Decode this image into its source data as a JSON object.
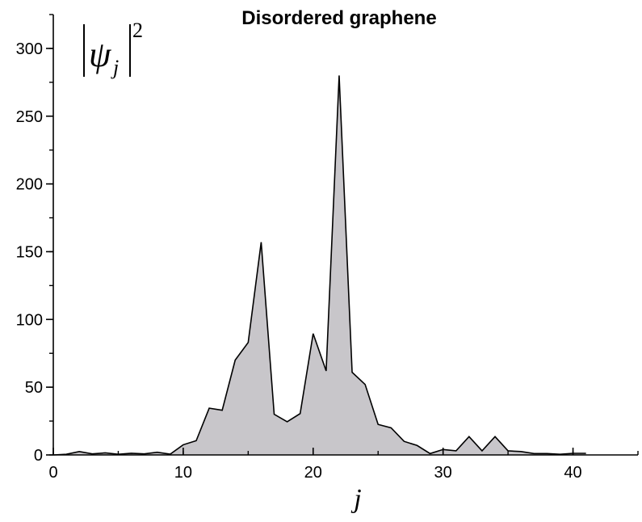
{
  "chart_data": {
    "type": "area",
    "title": "Disordered graphene",
    "xlabel": "j",
    "ylabel": {
      "symbol": "ψ",
      "subscript": "j",
      "exponent": "2"
    },
    "xlim": [
      0,
      45
    ],
    "ylim": [
      0,
      325
    ],
    "x_ticks": [
      "0",
      "10",
      "20",
      "30",
      "40"
    ],
    "y_ticks": [
      "0",
      "50",
      "100",
      "150",
      "200",
      "250",
      "300"
    ],
    "x_tick_values": [
      0,
      10,
      20,
      30,
      40
    ],
    "y_tick_values": [
      0,
      50,
      100,
      150,
      200,
      250,
      300
    ],
    "x_minor_step": 5,
    "y_minor_step": 25,
    "fill_color": "#c8c6ca",
    "line_color": "#000000",
    "grid": false,
    "legend": "none",
    "series": [
      {
        "x": [
          0,
          1,
          2,
          3,
          4,
          5,
          6,
          7,
          8,
          9,
          10,
          11,
          12,
          13,
          14,
          15,
          16,
          17,
          18,
          19,
          20,
          21,
          22,
          23,
          24,
          25,
          26,
          27,
          28,
          29,
          30,
          31,
          32,
          33,
          34,
          35,
          36,
          37,
          38,
          39,
          40,
          41
        ],
        "values": [
          0,
          0.5,
          2.5,
          0.8,
          1.5,
          0.5,
          1.2,
          0.8,
          2,
          0.6,
          7.5,
          10.5,
          34.5,
          33,
          70,
          83,
          157,
          30,
          24.5,
          30.5,
          89.5,
          62,
          280,
          61,
          52,
          22.5,
          20,
          10,
          7,
          1,
          4,
          3,
          13.5,
          3,
          13.5,
          3,
          2.5,
          1,
          1,
          0.5,
          1.2,
          1.2
        ]
      }
    ]
  }
}
